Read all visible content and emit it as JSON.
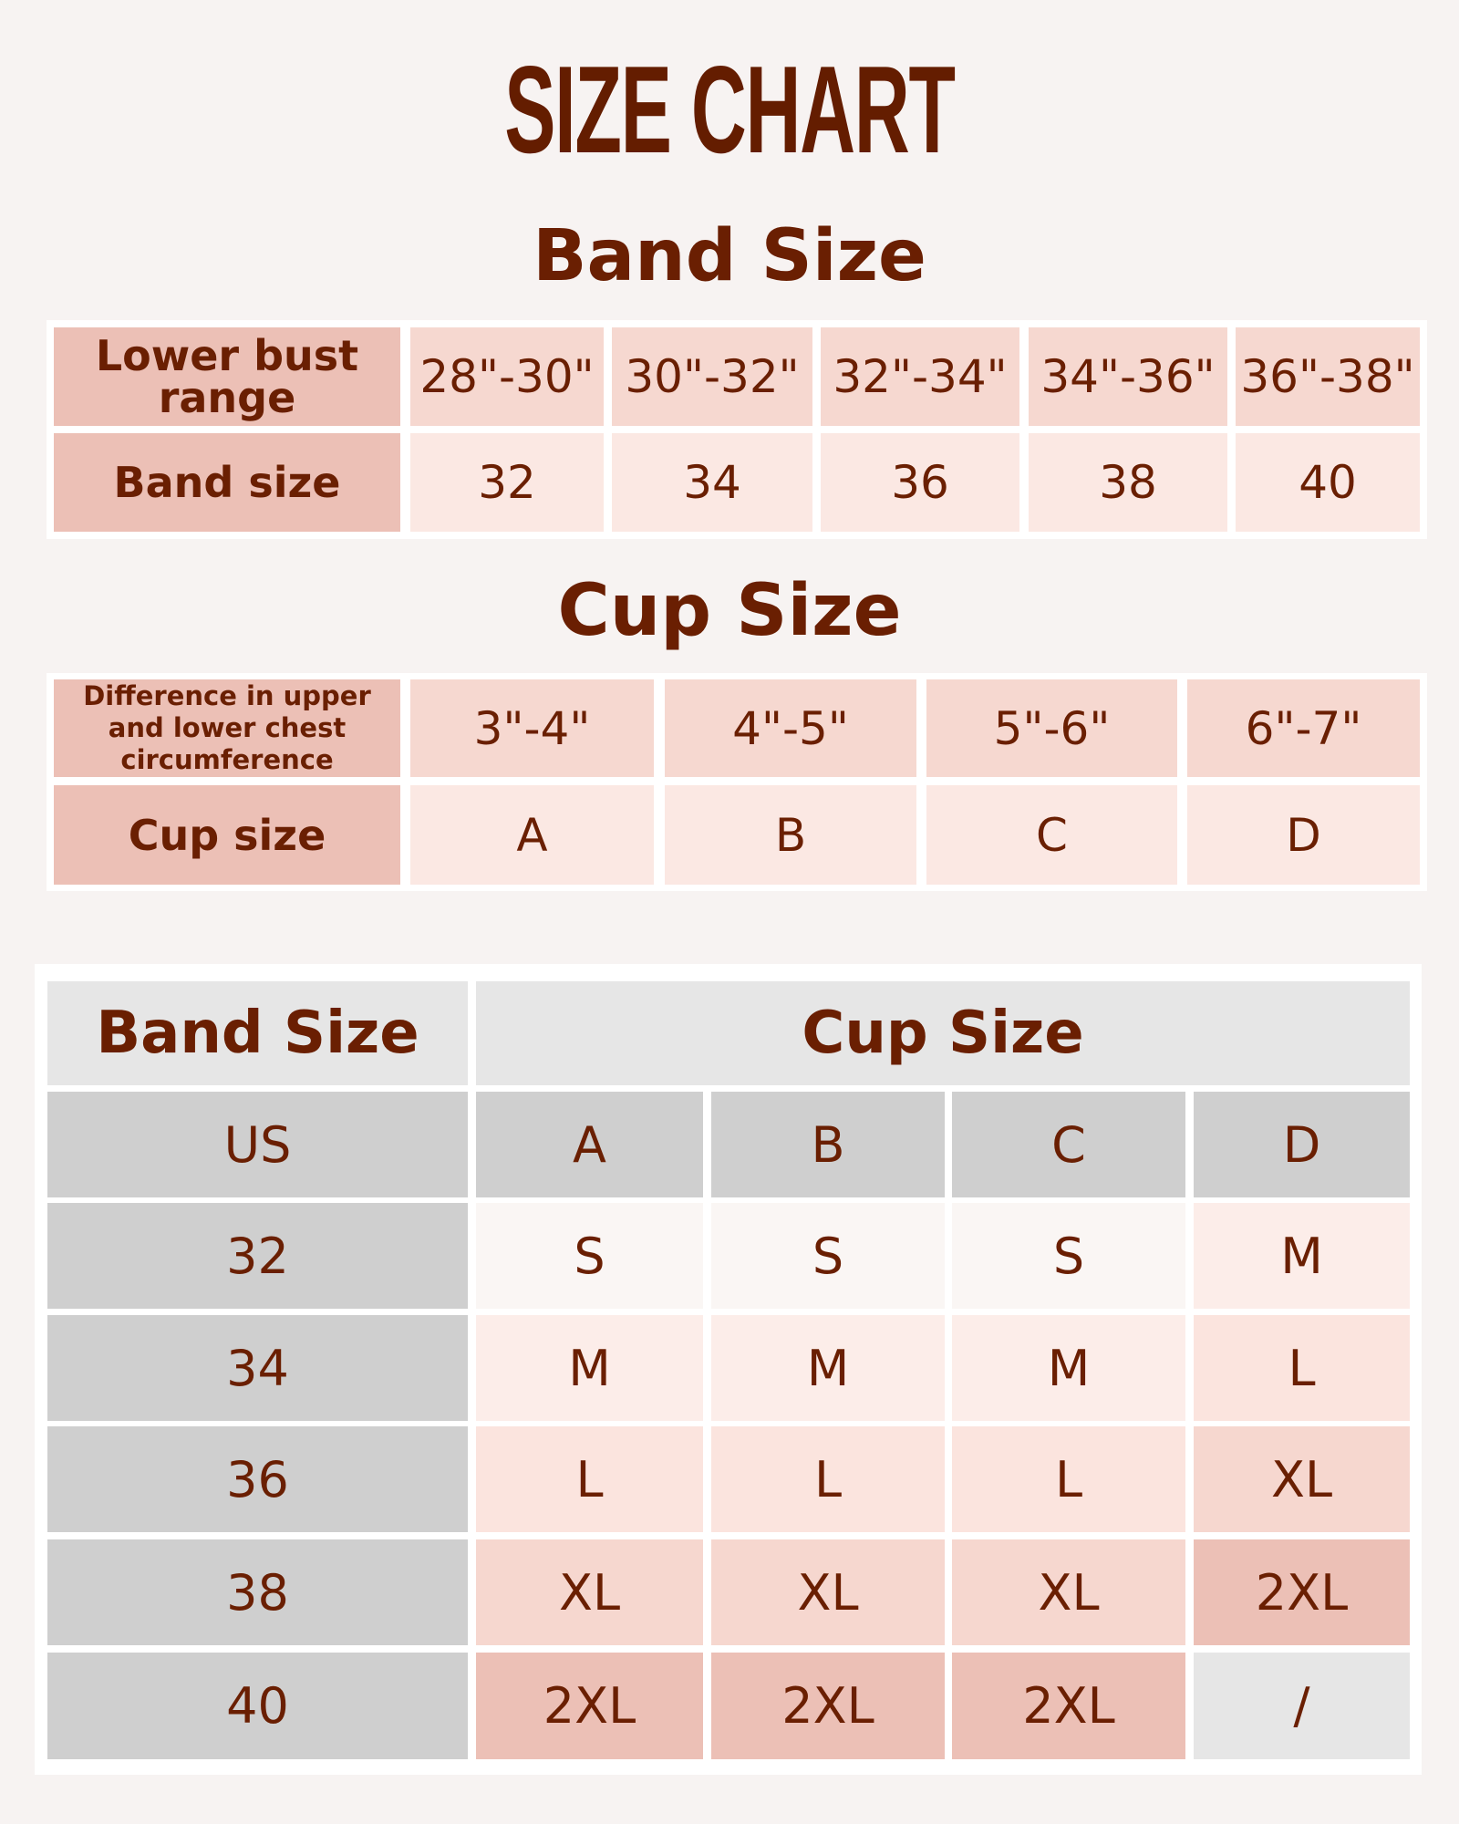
{
  "title": "SIZE CHART",
  "band_section": {
    "heading": "Band Size",
    "row_labels": [
      "Lower bust range",
      "Band size"
    ],
    "ranges": [
      "28\"-30\"",
      "30\"-32\"",
      "32\"-34\"",
      "34\"-36\"",
      "36\"-38\""
    ],
    "band_sizes": [
      "32",
      "34",
      "36",
      "38",
      "40"
    ]
  },
  "cup_section": {
    "heading": "Cup Size",
    "row_labels": [
      "Difference in upper and lower chest circumference",
      "Cup size"
    ],
    "differences": [
      "3\"-4\"",
      "4\"-5\"",
      "5\"-6\"",
      "6\"-7\""
    ],
    "cups": [
      "A",
      "B",
      "C",
      "D"
    ]
  },
  "size_table": {
    "band_header": "Band Size",
    "cup_header": "Cup Size",
    "us_label": "US",
    "cups": [
      "A",
      "B",
      "C",
      "D"
    ],
    "rows": [
      {
        "band": "32",
        "sizes": [
          "S",
          "S",
          "S",
          "M"
        ]
      },
      {
        "band": "34",
        "sizes": [
          "M",
          "M",
          "M",
          "L"
        ]
      },
      {
        "band": "36",
        "sizes": [
          "L",
          "L",
          "L",
          "XL"
        ]
      },
      {
        "band": "38",
        "sizes": [
          "XL",
          "XL",
          "XL",
          "2XL"
        ]
      },
      {
        "band": "40",
        "sizes": [
          "2XL",
          "2XL",
          "2XL",
          "/"
        ]
      }
    ]
  },
  "colors": {
    "text": "#6a1f02",
    "background": "#f7f3f2",
    "label_cell": "#ecc0b6",
    "row1_cell": "#f6d8d0",
    "row2_cell": "#fbe8e3",
    "header_gray": "#e6e6e6",
    "dark_gray": "#cfcfcf",
    "size_colors": {
      "S": "#faf6f4",
      "M": "#fcede9",
      "L": "#fbe4de",
      "XL": "#f6d7cf",
      "2XL": "#ecc0b6",
      "/": "#e6e6e6"
    }
  }
}
